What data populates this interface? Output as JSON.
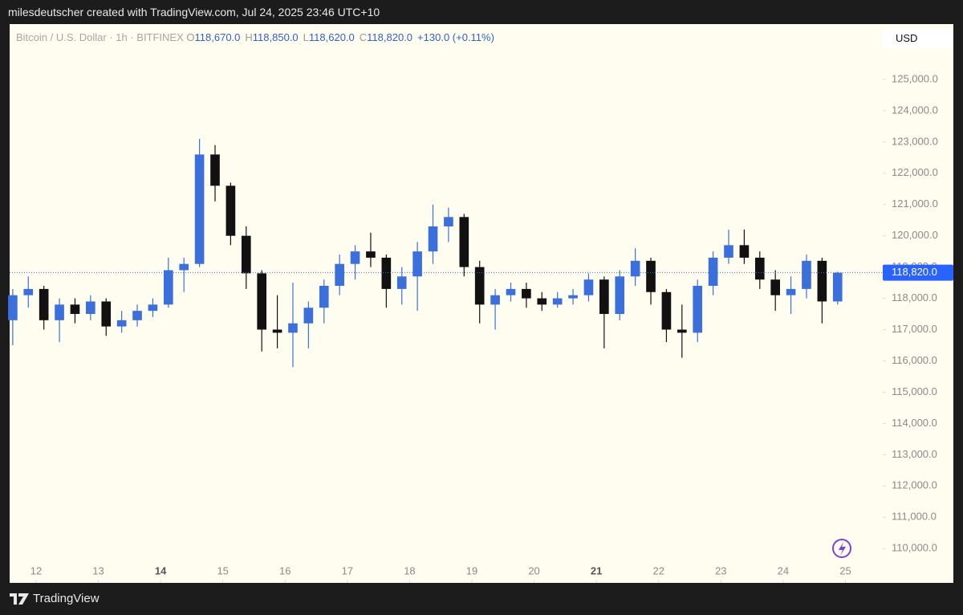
{
  "header": "milesdeutscher created with TradingView.com, Jul 24, 2025 23:46 UTC+10",
  "footer": "TradingView",
  "chart_data": {
    "type": "candlestick",
    "legend": {
      "symbol": "Bitcoin / U.S. Dollar · 1h · BITFINEX",
      "items": [
        {
          "key": "O",
          "value": "118,670.0"
        },
        {
          "key": "H",
          "value": "118,850.0"
        },
        {
          "key": "L",
          "value": "118,620.0"
        },
        {
          "key": "C",
          "value": "118,820.0"
        }
      ],
      "change": "+130.0 (+0.11%)"
    },
    "currency": "USD",
    "up_color": "#3b6fdc",
    "down_color": "#111111",
    "x": [
      11.625,
      11.875,
      12.125,
      12.375,
      12.625,
      12.875,
      13.125,
      13.375,
      13.625,
      13.875,
      14.125,
      14.375,
      14.625,
      14.875,
      15.125,
      15.375,
      15.625,
      15.875,
      16.125,
      16.375,
      16.625,
      16.875,
      17.125,
      17.375,
      17.625,
      17.875,
      18.125,
      18.375,
      18.625,
      18.875,
      19.125,
      19.375,
      19.625,
      19.875,
      20.125,
      20.375,
      20.625,
      20.875,
      21.125,
      21.375,
      21.625,
      21.875,
      22.125,
      22.375,
      22.625,
      22.875,
      23.125,
      23.375,
      23.625,
      23.875,
      24.125,
      24.375,
      24.625,
      24.875
    ],
    "open": [
      117300,
      118100,
      118300,
      117300,
      117800,
      117500,
      117900,
      117100,
      117300,
      117600,
      117800,
      118900,
      119100,
      122600,
      121600,
      120000,
      118800,
      117000,
      116900,
      117200,
      117700,
      118400,
      119100,
      119500,
      119300,
      118300,
      118700,
      119500,
      120300,
      120600,
      119000,
      117800,
      118100,
      118300,
      118000,
      117800,
      118000,
      118100,
      118600,
      117500,
      118700,
      119200,
      118200,
      117000,
      116900,
      118400,
      119300,
      119700,
      119300,
      118600,
      118100,
      118300,
      119200,
      117900
    ],
    "high": [
      118300,
      118700,
      118400,
      118000,
      118000,
      118100,
      118000,
      117600,
      117800,
      118000,
      119300,
      119300,
      123100,
      122900,
      121700,
      120300,
      118900,
      118100,
      118500,
      117900,
      118600,
      119400,
      119700,
      120100,
      119400,
      119000,
      119800,
      121000,
      120900,
      120700,
      119200,
      118300,
      118500,
      118500,
      118200,
      118200,
      118300,
      118800,
      118700,
      118900,
      119600,
      119300,
      118300,
      117800,
      118600,
      119500,
      120200,
      120200,
      119500,
      118900,
      118700,
      119400,
      119300,
      118850
    ],
    "low": [
      116500,
      117700,
      117000,
      116600,
      117200,
      117300,
      116800,
      116900,
      117100,
      117400,
      117700,
      118200,
      119000,
      121100,
      119700,
      118300,
      116300,
      116400,
      115800,
      116400,
      117200,
      118100,
      118600,
      119000,
      117700,
      117800,
      117600,
      119100,
      119800,
      118700,
      117200,
      117000,
      117900,
      117700,
      117600,
      117700,
      117800,
      117900,
      116400,
      117300,
      118400,
      117800,
      116600,
      116100,
      116600,
      118100,
      119100,
      119100,
      118300,
      117600,
      117500,
      118000,
      117200,
      117800
    ],
    "close": [
      118100,
      118300,
      117300,
      117800,
      117500,
      117900,
      117100,
      117300,
      117600,
      117800,
      118900,
      119100,
      122600,
      121600,
      120000,
      118800,
      117000,
      116900,
      117200,
      117700,
      118400,
      119100,
      119500,
      119300,
      118300,
      118700,
      119500,
      120300,
      120600,
      119000,
      117800,
      118100,
      118300,
      118000,
      117800,
      118000,
      118100,
      118600,
      117500,
      118700,
      119200,
      118200,
      117000,
      116900,
      118400,
      119300,
      119700,
      119300,
      118600,
      118100,
      118300,
      119200,
      117900,
      118820
    ],
    "xlim": [
      11.575,
      25.6
    ],
    "xticks": [
      12,
      13,
      14,
      15,
      16,
      17,
      18,
      19,
      20,
      21,
      22,
      23,
      24,
      25
    ],
    "ylim": [
      108900,
      126770
    ],
    "yticks": [
      {
        "value": 110000,
        "label": "110,000.0"
      },
      {
        "value": 111000,
        "label": "111,000.0"
      },
      {
        "value": 112000,
        "label": "112,000.0"
      },
      {
        "value": 113000,
        "label": "113,000.0"
      },
      {
        "value": 114000,
        "label": "114,000.0"
      },
      {
        "value": 115000,
        "label": "115,000.0"
      },
      {
        "value": 116000,
        "label": "116,000.0"
      },
      {
        "value": 117000,
        "label": "117,000.0"
      },
      {
        "value": 118000,
        "label": "118,000.0"
      },
      {
        "value": 119000,
        "label": "119,000.0"
      },
      {
        "value": 120000,
        "label": "120,000.0"
      },
      {
        "value": 121000,
        "label": "121,000.0"
      },
      {
        "value": 122000,
        "label": "122,000.0"
      },
      {
        "value": 123000,
        "label": "123,000.0"
      },
      {
        "value": 124000,
        "label": "124,000.0"
      },
      {
        "value": 125000,
        "label": "125,000.0"
      }
    ],
    "last_price": {
      "value": 118820,
      "label": "118,820.0"
    }
  }
}
